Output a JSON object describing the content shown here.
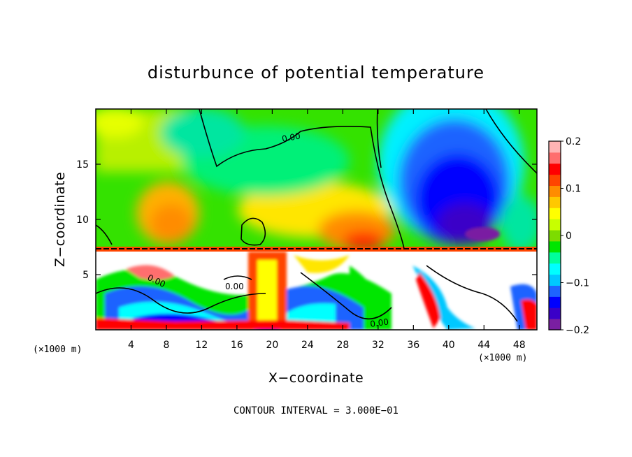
{
  "chart_data": {
    "type": "heatmap",
    "title": "disturbunce of potential temperature",
    "xlabel": "X−coordinate",
    "ylabel": "Z−coordinate",
    "x_unit_left": "(×1000 m)",
    "x_unit_right": "(×1000 m)",
    "xlim": [
      0,
      50
    ],
    "ylim": [
      0,
      20
    ],
    "x_ticks": [
      4,
      8,
      12,
      16,
      20,
      24,
      28,
      32,
      36,
      40,
      44,
      48
    ],
    "y_ticks": [
      5,
      10,
      15
    ],
    "colorbar": {
      "range": [
        -0.2,
        0.2
      ],
      "tick_values": [
        0.2,
        0.1,
        0,
        -0.1,
        -0.2
      ],
      "tick_labels": [
        "0.2",
        "0.1",
        "0",
        "−0.1",
        "−0.2"
      ],
      "colors": [
        "#7a1fa2",
        "#3a00c8",
        "#0000ff",
        "#1e64ff",
        "#00c8ff",
        "#00ffff",
        "#00ff9c",
        "#00e600",
        "#7ddc00",
        "#c8ff00",
        "#ffff00",
        "#ffc800",
        "#ff8c00",
        "#ff4500",
        "#ff0000",
        "#ff6e6e",
        "#ffb4b4"
      ]
    },
    "contour_interval_text": "CONTOUR INTERVAL = 3.000E−01",
    "contour_labels": [
      "0.00",
      "0.00",
      "0.00",
      "0.00"
    ],
    "grid": false,
    "regions_note": "upper layer smooth field: warm anomaly centered x≈8–32 km, cold anomaly (down to −0.2) centered x≈38–46 km, z≈8–18 km; lower layer z<7.5 km highly turbulent"
  }
}
